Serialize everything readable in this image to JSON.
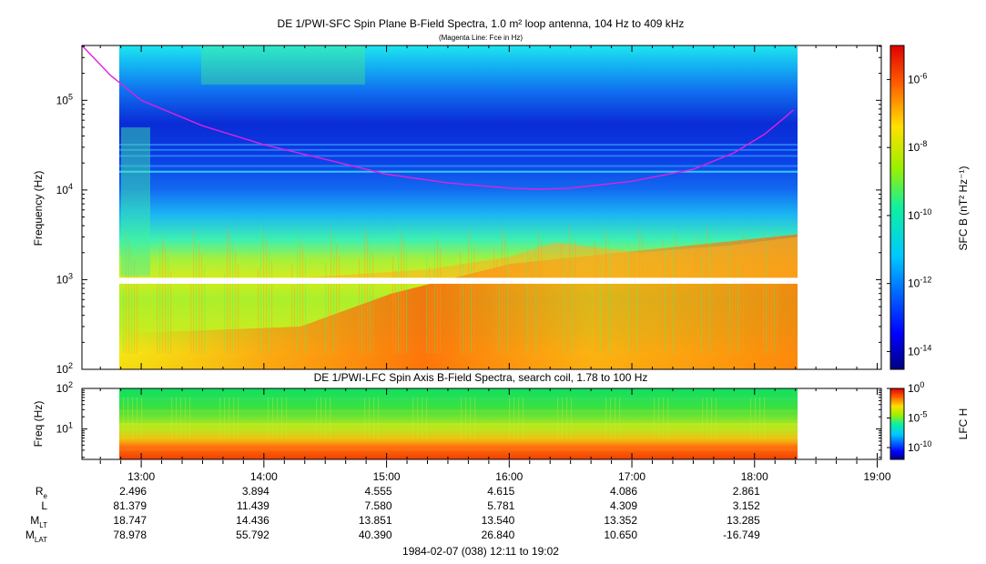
{
  "chart_data": [
    {
      "type": "heatmap",
      "title": "DE 1/PWI-SFC  Spin Plane B-Field Spectra, 1.0 m² loop antenna, 104 Hz to 409 kHz",
      "subtitle": "(Magenta Line: Fce in Hz)",
      "ylabel": "Frequency (Hz)",
      "y_scale": "log",
      "ylim": [
        100,
        409000
      ],
      "y_ticks": [
        {
          "mant": "10",
          "exp": "2"
        },
        {
          "mant": "10",
          "exp": "3"
        },
        {
          "mant": "10",
          "exp": "4"
        },
        {
          "mant": "10",
          "exp": "5"
        }
      ],
      "colorbar": {
        "label": "SFC B (nT² Hz⁻¹)",
        "scale": "log",
        "range": [
          3e-15,
          1e-05
        ],
        "ticks": [
          {
            "mant": "10",
            "exp": "-6",
            "value": 1e-06
          },
          {
            "mant": "10",
            "exp": "-8",
            "value": 1e-08
          },
          {
            "mant": "10",
            "exp": "-10",
            "value": 1e-10
          },
          {
            "mant": "10",
            "exp": "-12",
            "value": 1e-12
          },
          {
            "mant": "10",
            "exp": "-14",
            "value": 1e-14
          }
        ]
      },
      "data_span": [
        "12:11",
        "19:02"
      ],
      "gap_hz": [
        900,
        1050
      ],
      "fce_line": {
        "name": "Fce",
        "color": "#e020e0",
        "points": [
          [
            "12:31",
            409000
          ],
          [
            "12:45",
            190000
          ],
          [
            "13:00",
            100000
          ],
          [
            "13:30",
            52000
          ],
          [
            "14:00",
            32000
          ],
          [
            "14:30",
            22000
          ],
          [
            "15:00",
            15000
          ],
          [
            "15:30",
            12000
          ],
          [
            "16:00",
            10500
          ],
          [
            "16:15",
            10200
          ],
          [
            "16:30",
            10500
          ],
          [
            "17:00",
            12500
          ],
          [
            "17:30",
            17000
          ],
          [
            "17:50",
            26000
          ],
          [
            "18:05",
            42000
          ],
          [
            "18:15",
            65000
          ],
          [
            "18:19",
            78000
          ]
        ]
      }
    },
    {
      "type": "heatmap",
      "title": "DE 1/PWI-LFC  Spin Axis B-Field Spectra, search coil, 1.78 to 100 Hz",
      "ylabel": "Freq (Hz)",
      "y_scale": "log",
      "ylim": [
        1.78,
        100
      ],
      "y_ticks": [
        {
          "mant": "10",
          "exp": "1"
        },
        {
          "mant": "10",
          "exp": "2"
        }
      ],
      "colorbar": {
        "label": "LFC H",
        "scale": "log",
        "range": [
          1e-12,
          1
        ],
        "ticks": [
          {
            "mant": "10",
            "exp": "0",
            "value": 1
          },
          {
            "mant": "10",
            "exp": "-5",
            "value": 1e-05
          },
          {
            "mant": "10",
            "exp": "-10",
            "value": 1e-10
          }
        ]
      },
      "data_span": [
        "12:11",
        "19:02"
      ]
    }
  ],
  "time_axis": {
    "range": [
      "12:31",
      "19:02"
    ],
    "ticks": [
      "13:00",
      "14:00",
      "15:00",
      "16:00",
      "17:00",
      "18:00",
      "19:00"
    ],
    "minor_step_min": 10
  },
  "ephemeris": {
    "rows": [
      {
        "label": "R",
        "sub": "e",
        "values": [
          "2.496",
          "3.894",
          "4.555",
          "4.615",
          "4.086",
          "2.861"
        ]
      },
      {
        "label": "L",
        "sub": "",
        "values": [
          "81.379",
          "11.439",
          "7.580",
          "5.781",
          "4.309",
          "3.152"
        ]
      },
      {
        "label": "M",
        "sub": "LT",
        "values": [
          "18.747",
          "14.436",
          "13.851",
          "13.540",
          "13.352",
          "13.285"
        ]
      },
      {
        "label": "M",
        "sub": "LAT",
        "values": [
          "78.978",
          "55.792",
          "40.390",
          "26.840",
          "10.650",
          "-16.749"
        ]
      }
    ]
  },
  "footer": "1984-02-07 (038) 12:11 to 19:02"
}
